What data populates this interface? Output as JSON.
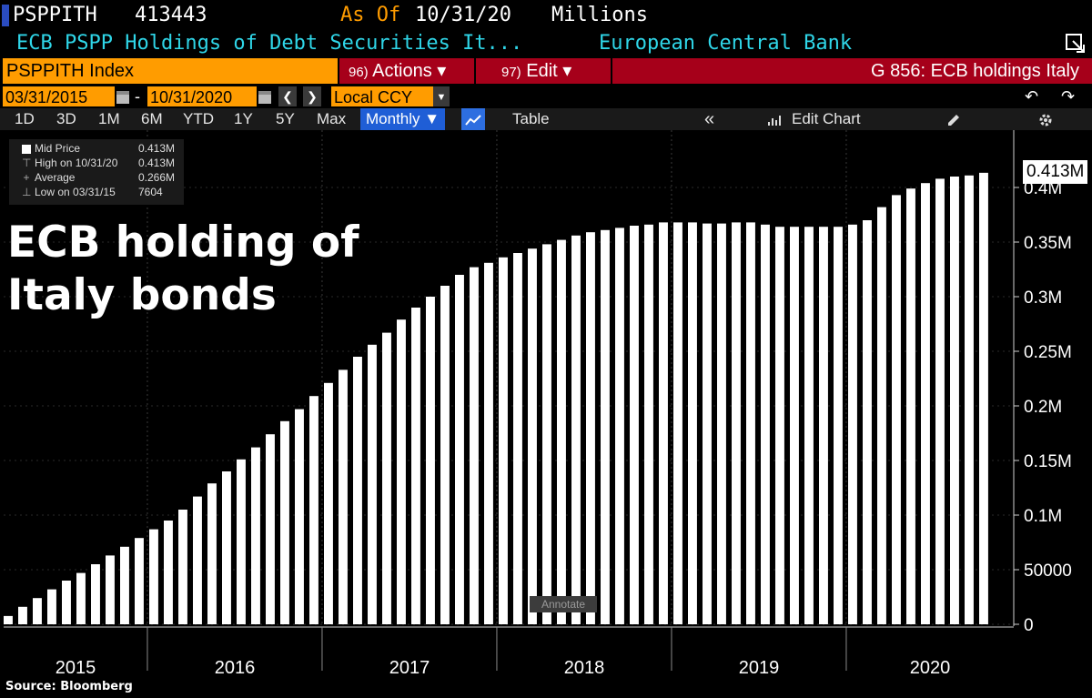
{
  "header": {
    "ticker": "PSPPITH",
    "last_value": "413443",
    "as_of_label": "As Of",
    "as_of_date": "10/31/20",
    "units": "Millions",
    "description": "ECB PSPP Holdings of Debt Securities It...",
    "source_name": "European Central Bank"
  },
  "command_bar": {
    "security": "PSPPITH Index",
    "actions_num": "96)",
    "actions_label": "Actions ▾",
    "edit_num": "97)",
    "edit_label": "Edit ▾",
    "graph_title": "G 856: ECB holdings Italy"
  },
  "date_range": {
    "start": "03/31/2015",
    "separator": "-",
    "end": "10/31/2020",
    "currency": "Local CCY"
  },
  "toolbar": {
    "periods": [
      "1D",
      "3D",
      "1M",
      "6M",
      "YTD",
      "1Y",
      "5Y",
      "Max"
    ],
    "frequency": "Monthly ▼",
    "table_label": "Table",
    "collapse_label": "«",
    "edit_chart_label": "Edit Chart"
  },
  "legend": {
    "rows": [
      {
        "label": "Mid Price",
        "value": "0.413M"
      },
      {
        "label": "High on 10/31/20",
        "value": "0.413M"
      },
      {
        "label": "Average",
        "value": "0.266M"
      },
      {
        "label": "Low on 03/31/15",
        "value": "7604"
      }
    ]
  },
  "overlay_title": [
    "ECB holding of",
    "Italy bonds"
  ],
  "source": "Source: Bloomberg",
  "annotate_label": "Annotate",
  "last_value_label": "0.413M",
  "icons": {
    "calendar": "calendar-icon",
    "undo": "undo-icon",
    "redo": "redo-icon",
    "gear": "gear-icon",
    "pencil": "pencil-icon",
    "expand": "expand-icon"
  },
  "chart_data": {
    "type": "bar",
    "title": "",
    "xlabel": "",
    "ylabel": "",
    "ylim": [
      0,
      450000
    ],
    "yticks": [
      0,
      50000,
      100000,
      150000,
      200000,
      250000,
      300000,
      350000,
      400000
    ],
    "ytick_labels": [
      "0",
      "50000",
      "0.1M",
      "0.15M",
      "0.2M",
      "0.25M",
      "0.3M",
      "0.35M",
      "0.4M"
    ],
    "year_labels": [
      "2015",
      "2016",
      "2017",
      "2018",
      "2019",
      "2020"
    ],
    "categories": [
      "2015-03",
      "2015-04",
      "2015-05",
      "2015-06",
      "2015-07",
      "2015-08",
      "2015-09",
      "2015-10",
      "2015-11",
      "2015-12",
      "2016-01",
      "2016-02",
      "2016-03",
      "2016-04",
      "2016-05",
      "2016-06",
      "2016-07",
      "2016-08",
      "2016-09",
      "2016-10",
      "2016-11",
      "2016-12",
      "2017-01",
      "2017-02",
      "2017-03",
      "2017-04",
      "2017-05",
      "2017-06",
      "2017-07",
      "2017-08",
      "2017-09",
      "2017-10",
      "2017-11",
      "2017-12",
      "2018-01",
      "2018-02",
      "2018-03",
      "2018-04",
      "2018-05",
      "2018-06",
      "2018-07",
      "2018-08",
      "2018-09",
      "2018-10",
      "2018-11",
      "2018-12",
      "2019-01",
      "2019-02",
      "2019-03",
      "2019-04",
      "2019-05",
      "2019-06",
      "2019-07",
      "2019-08",
      "2019-09",
      "2019-10",
      "2019-11",
      "2019-12",
      "2020-01",
      "2020-02",
      "2020-03",
      "2020-04",
      "2020-05",
      "2020-06",
      "2020-07",
      "2020-08",
      "2020-09",
      "2020-10"
    ],
    "values": [
      7604,
      16000,
      24000,
      32000,
      40000,
      47000,
      55000,
      63000,
      71000,
      79000,
      87000,
      95000,
      105000,
      117000,
      129000,
      140000,
      151000,
      162000,
      174000,
      186000,
      197000,
      209000,
      221000,
      233000,
      245000,
      256000,
      267000,
      279000,
      290000,
      300000,
      310000,
      320000,
      327000,
      331000,
      336000,
      340000,
      344000,
      348000,
      352000,
      356000,
      359000,
      361000,
      363000,
      365000,
      366000,
      368000,
      368000,
      368000,
      367000,
      367000,
      368000,
      368000,
      366000,
      364000,
      364000,
      364000,
      364000,
      364000,
      366000,
      370000,
      382000,
      393000,
      399000,
      404000,
      408000,
      410000,
      411000,
      413443
    ],
    "grid": true,
    "legend_position": "top-left"
  }
}
